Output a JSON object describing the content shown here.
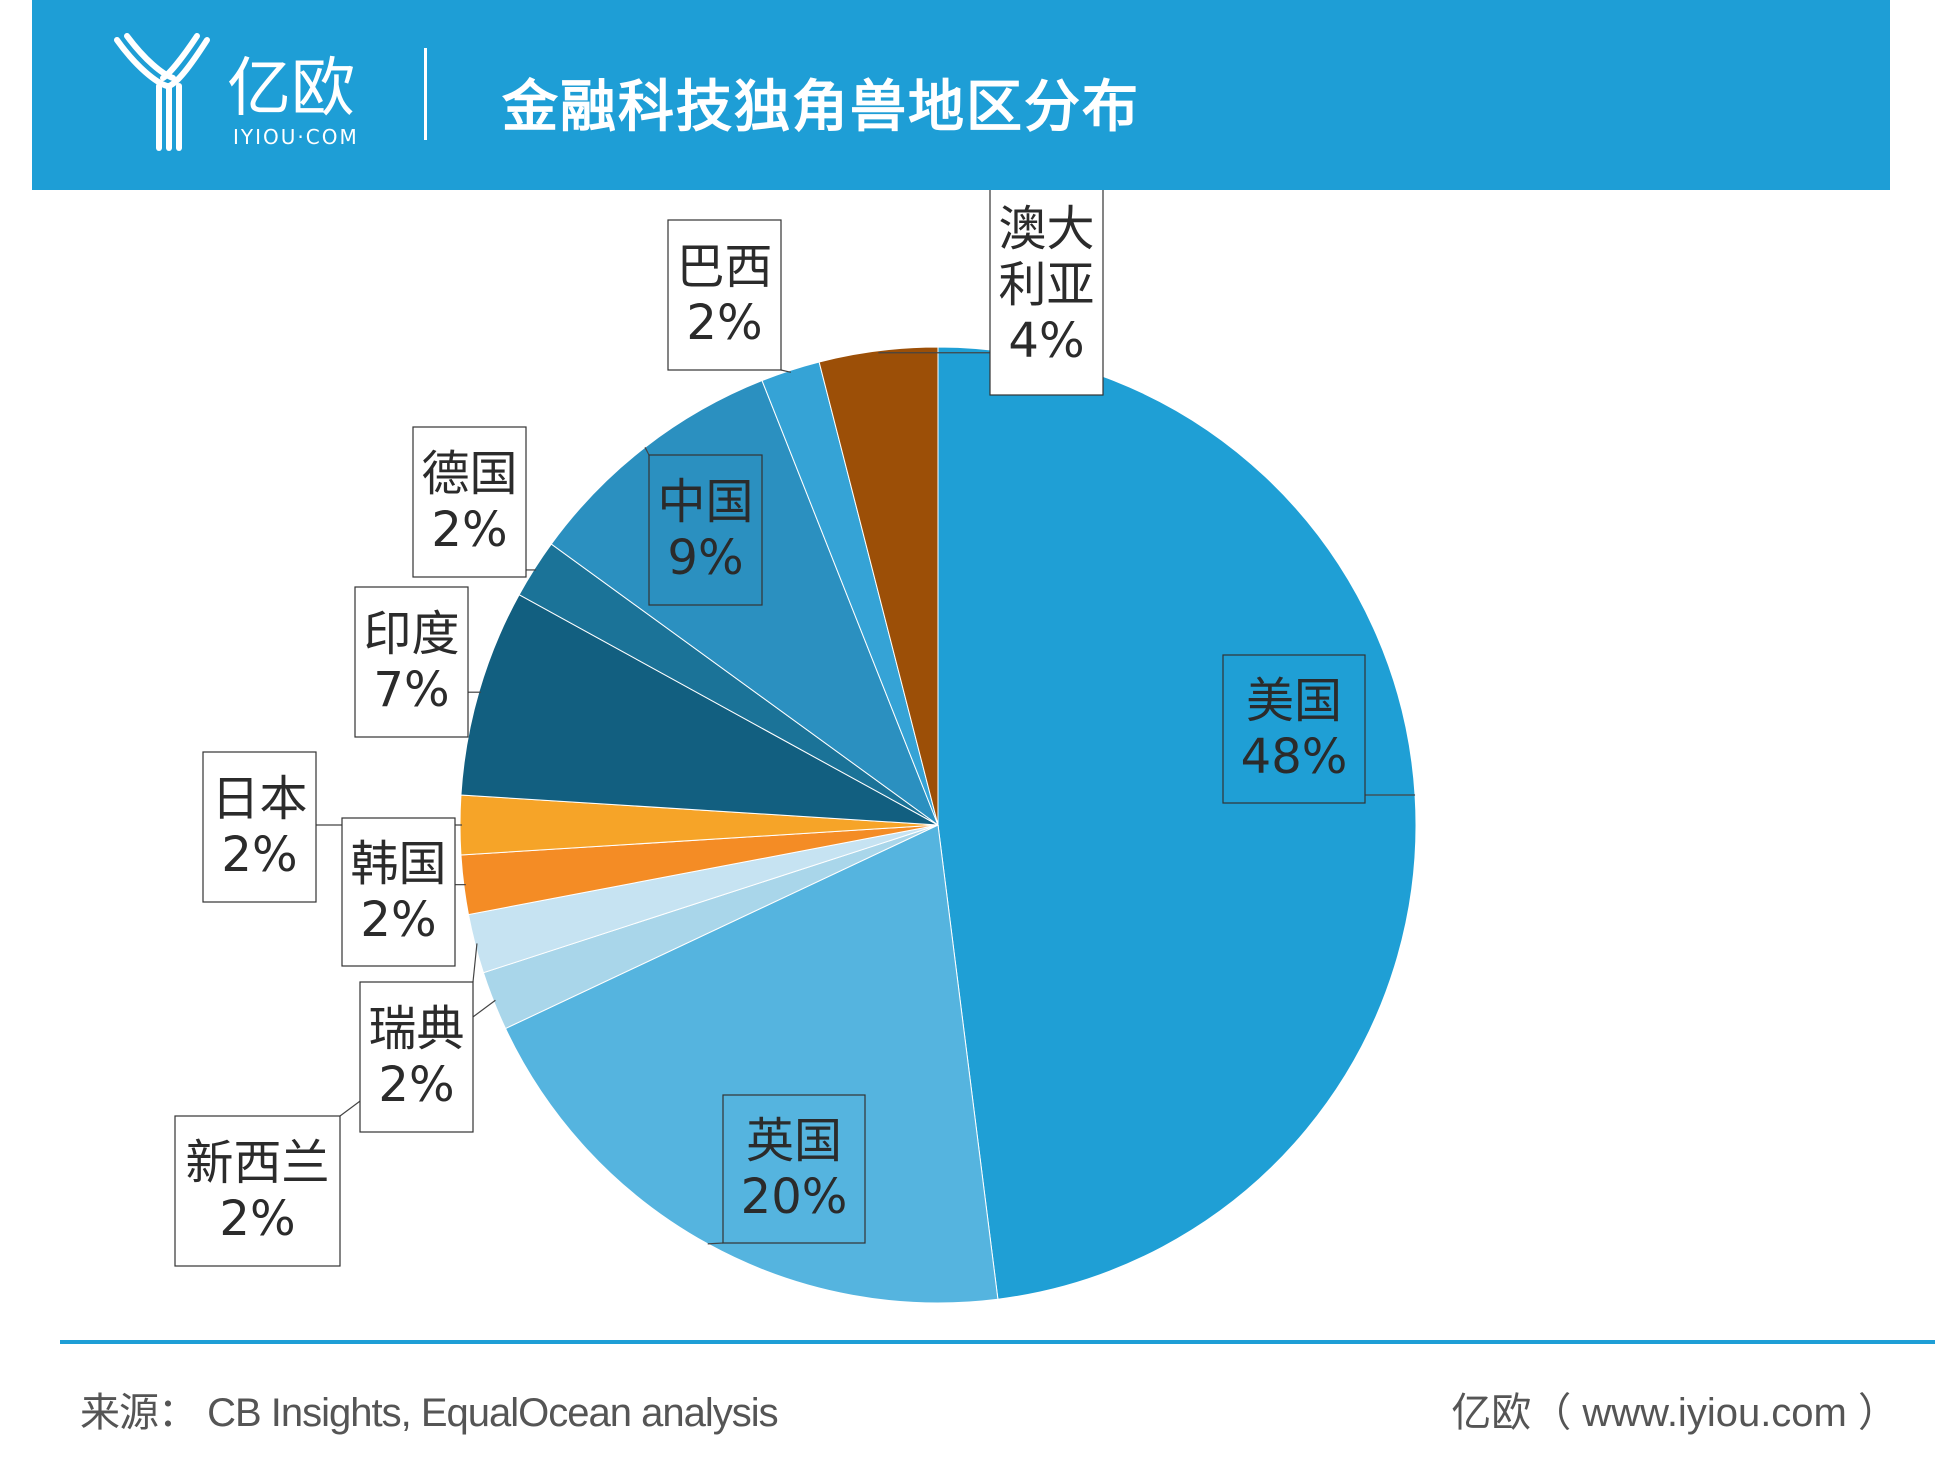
{
  "header": {
    "title": "金融科技独角兽地区分布",
    "logo_text": "亿欧",
    "logo_sub": "IYIOU·COM"
  },
  "colors": {
    "header_bg": "#1e9ed6",
    "footer_line": "#1e9ed6"
  },
  "chart_data": {
    "type": "pie",
    "title": "",
    "start": "12 o'clock, clockwise",
    "slices": [
      {
        "label": "美国",
        "value": 48,
        "display": "48%",
        "color": "#1f9fd5"
      },
      {
        "label": "英国",
        "value": 20,
        "display": "20%",
        "color": "#55b4df"
      },
      {
        "label": "新西兰",
        "value": 2,
        "display": "2%",
        "color": "#a9d6ea"
      },
      {
        "label": "瑞典",
        "value": 2,
        "display": "2%",
        "color": "#c6e3f2"
      },
      {
        "label": "韩国",
        "value": 2,
        "display": "2%",
        "color": "#f48c25"
      },
      {
        "label": "日本",
        "value": 2,
        "display": "2%",
        "color": "#f6a428"
      },
      {
        "label": "印度",
        "value": 7,
        "display": "7%",
        "color": "#125f80"
      },
      {
        "label": "德国",
        "value": 2,
        "display": "2%",
        "color": "#1b7398"
      },
      {
        "label": "中国",
        "value": 9,
        "display": "9%",
        "color": "#2b90c0"
      },
      {
        "label": "巴西",
        "value": 2,
        "display": "2%",
        "color": "#35a3d6"
      },
      {
        "label": "澳大利亚",
        "value": 4,
        "display": "4%",
        "color": "#9c4f07"
      }
    ]
  },
  "footer": {
    "source": "来源： CB Insights, EqualOcean analysis",
    "brand": "亿欧（ www.iyiou.com ）"
  }
}
